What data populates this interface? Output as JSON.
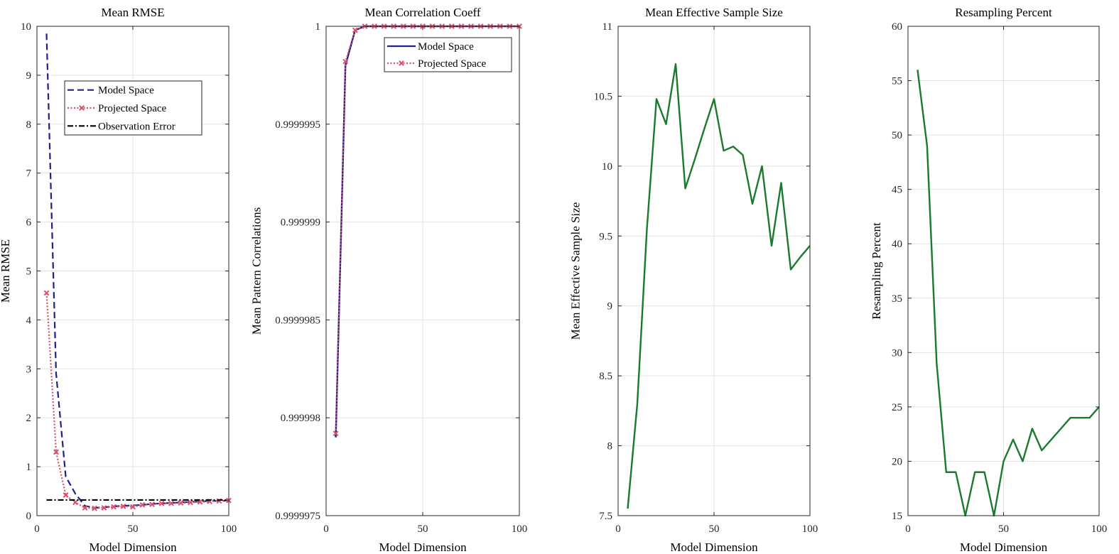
{
  "chart_data": [
    {
      "type": "line",
      "title": "Mean RMSE",
      "xlabel": "Model Dimension",
      "ylabel": "Mean RMSE",
      "xlim": [
        0,
        100
      ],
      "ylim": [
        0,
        10
      ],
      "xticks": [
        0,
        50,
        100
      ],
      "yticks": [
        0,
        1,
        2,
        3,
        4,
        5,
        6,
        7,
        8,
        9,
        10
      ],
      "xtick_labels": [
        "0",
        "50",
        "100"
      ],
      "ytick_labels": [
        "0",
        "1",
        "2",
        "3",
        "4",
        "5",
        "6",
        "7",
        "8",
        "9",
        "10"
      ],
      "grid": true,
      "legend": "upper-center",
      "series": [
        {
          "name": "Model Space",
          "color": "#1f1f8f",
          "style": "dashed",
          "marker": "none",
          "x": [
            5,
            10,
            15,
            20,
            25,
            30,
            35,
            40,
            45,
            50,
            55,
            60,
            65,
            70,
            75,
            80,
            85,
            90,
            95,
            100
          ],
          "values": [
            9.85,
            2.9,
            0.8,
            0.45,
            0.2,
            0.16,
            0.17,
            0.19,
            0.2,
            0.21,
            0.22,
            0.24,
            0.25,
            0.26,
            0.27,
            0.28,
            0.29,
            0.3,
            0.3,
            0.31
          ]
        },
        {
          "name": "Projected Space",
          "color": "#d9506a",
          "style": "dotted",
          "marker": "x",
          "x": [
            5,
            10,
            15,
            20,
            25,
            30,
            35,
            40,
            45,
            50,
            55,
            60,
            65,
            70,
            75,
            80,
            85,
            90,
            95,
            100
          ],
          "values": [
            4.55,
            1.3,
            0.42,
            0.27,
            0.16,
            0.15,
            0.16,
            0.18,
            0.19,
            0.18,
            0.22,
            0.23,
            0.25,
            0.25,
            0.26,
            0.27,
            0.28,
            0.29,
            0.3,
            0.31
          ]
        },
        {
          "name": "Observation Error",
          "color": "#000000",
          "style": "dashdot",
          "marker": "none",
          "x": [
            5,
            100
          ],
          "values": [
            0.32,
            0.32
          ]
        }
      ]
    },
    {
      "type": "line",
      "title": "Mean Correlation Coeff",
      "xlabel": "Model Dimension",
      "ylabel": "Mean Pattern Correlations",
      "xlim": [
        0,
        100
      ],
      "ylim": [
        0.9999975,
        1
      ],
      "xticks": [
        0,
        50,
        100
      ],
      "yticks": [
        0.9999975,
        0.999998,
        0.9999985,
        0.999999,
        0.9999995,
        1
      ],
      "xtick_labels": [
        "0",
        "50",
        "100"
      ],
      "ytick_labels": [
        "0.9999975",
        "0.999998",
        "0.9999985",
        "0.999999",
        "0.9999995",
        "1"
      ],
      "grid": true,
      "legend": "top-right",
      "series": [
        {
          "name": "Model Space",
          "color": "#1f1f8f",
          "style": "solid",
          "marker": "none",
          "x": [
            5,
            10,
            15,
            20,
            25,
            30,
            35,
            40,
            45,
            50,
            55,
            60,
            65,
            70,
            75,
            80,
            85,
            90,
            95,
            100
          ],
          "values": [
            0.9999979,
            0.9999998,
            0.99999998,
            1,
            1,
            1,
            1,
            1,
            1,
            1,
            1,
            1,
            1,
            1,
            1,
            1,
            1,
            1,
            1,
            1
          ]
        },
        {
          "name": "Projected Space",
          "color": "#d9506a",
          "style": "dotted",
          "marker": "x",
          "x": [
            5,
            10,
            15,
            20,
            25,
            30,
            35,
            40,
            45,
            50,
            55,
            60,
            65,
            70,
            75,
            80,
            85,
            90,
            95,
            100
          ],
          "values": [
            0.99999792,
            0.99999982,
            0.99999998,
            1,
            1,
            1,
            1,
            1,
            1,
            1,
            1,
            1,
            1,
            1,
            1,
            1,
            1,
            1,
            1,
            1
          ]
        }
      ]
    },
    {
      "type": "line",
      "title": "Mean Effective Sample Size",
      "xlabel": "Model Dimension",
      "ylabel": "Mean Effective Sample Size",
      "xlim": [
        0,
        100
      ],
      "ylim": [
        7.5,
        11
      ],
      "xticks": [
        0,
        50,
        100
      ],
      "yticks": [
        7.5,
        8,
        8.5,
        9,
        9.5,
        10,
        10.5,
        11
      ],
      "xtick_labels": [
        "0",
        "50",
        "100"
      ],
      "ytick_labels": [
        "7.5",
        "8",
        "8.5",
        "9",
        "9.5",
        "10",
        "10.5",
        "11"
      ],
      "grid": true,
      "series": [
        {
          "color": "#1a7a2e",
          "style": "solid",
          "marker": "none",
          "x": [
            5,
            10,
            15,
            20,
            25,
            30,
            35,
            40,
            45,
            50,
            55,
            60,
            65,
            70,
            75,
            80,
            85,
            90,
            95,
            100
          ],
          "values": [
            7.55,
            8.3,
            9.55,
            10.48,
            10.3,
            10.73,
            9.84,
            10.05,
            10.27,
            10.48,
            10.11,
            10.14,
            10.08,
            9.73,
            10.0,
            9.43,
            9.88,
            9.26,
            9.35,
            9.43
          ]
        }
      ]
    },
    {
      "type": "line",
      "title": "Resampling Percent",
      "xlabel": "Model Dimension",
      "ylabel": "Resampling Percent",
      "xlim": [
        0,
        100
      ],
      "ylim": [
        15,
        60
      ],
      "xticks": [
        0,
        50,
        100
      ],
      "yticks": [
        15,
        20,
        25,
        30,
        35,
        40,
        45,
        50,
        55,
        60
      ],
      "xtick_labels": [
        "0",
        "50",
        "100"
      ],
      "ytick_labels": [
        "15",
        "20",
        "25",
        "30",
        "35",
        "40",
        "45",
        "50",
        "55",
        "60"
      ],
      "grid": true,
      "series": [
        {
          "color": "#1a7a2e",
          "style": "solid",
          "marker": "none",
          "x": [
            5,
            10,
            15,
            20,
            25,
            30,
            35,
            40,
            45,
            50,
            55,
            60,
            65,
            70,
            75,
            80,
            85,
            90,
            95,
            100
          ],
          "values": [
            56,
            49,
            29,
            19,
            19,
            15,
            19,
            19,
            15,
            20,
            22,
            20,
            23,
            21,
            22,
            23,
            24,
            24,
            24,
            25
          ]
        }
      ]
    }
  ]
}
